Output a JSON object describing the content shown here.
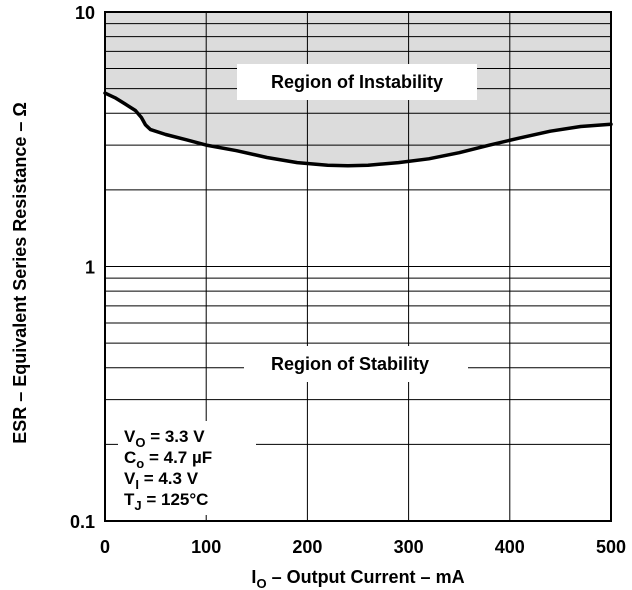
{
  "chart_data": {
    "type": "area",
    "x_scale": "linear",
    "y_scale": "log",
    "xlim": [
      0,
      500
    ],
    "ylim": [
      0.1,
      10
    ],
    "grid": true,
    "x_ticks": [
      "0",
      "100",
      "200",
      "300",
      "400",
      "500"
    ],
    "y_ticks": [
      "0.1",
      "1",
      "10"
    ],
    "xlabel": {
      "main": "I",
      "sub": "O",
      "rest": " – Output Current – mA"
    },
    "ylabel": "ESR – Equivalent Series Resistance – Ω",
    "series": [
      {
        "x": [
          0,
          10,
          20,
          30,
          36,
          40,
          45,
          60,
          80,
          100,
          130,
          160,
          190,
          220,
          240,
          260,
          290,
          320,
          350,
          380,
          410,
          440,
          470,
          500
        ],
        "y": [
          4.8,
          4.6,
          4.35,
          4.1,
          3.85,
          3.6,
          3.45,
          3.3,
          3.15,
          3.0,
          2.85,
          2.68,
          2.56,
          2.5,
          2.49,
          2.5,
          2.56,
          2.65,
          2.8,
          3.0,
          3.2,
          3.4,
          3.55,
          3.62
        ]
      }
    ],
    "annotations": {
      "unstable": "Region of Instability",
      "stable": "Region of Stability"
    },
    "conditions": [
      {
        "main": "V",
        "sub": "O",
        "rest": " = 3.3 V"
      },
      {
        "main": "C",
        "sub": "o",
        "rest": " = 4.7 µF"
      },
      {
        "main": "V",
        "sub": "I",
        "rest": " = 4.3 V"
      },
      {
        "main": "T",
        "sub": "J",
        "rest": " = 125°C"
      }
    ],
    "colors": {
      "unstable_fill": "#dcdcdc",
      "curve": "#000000",
      "grid": "#000000"
    }
  }
}
